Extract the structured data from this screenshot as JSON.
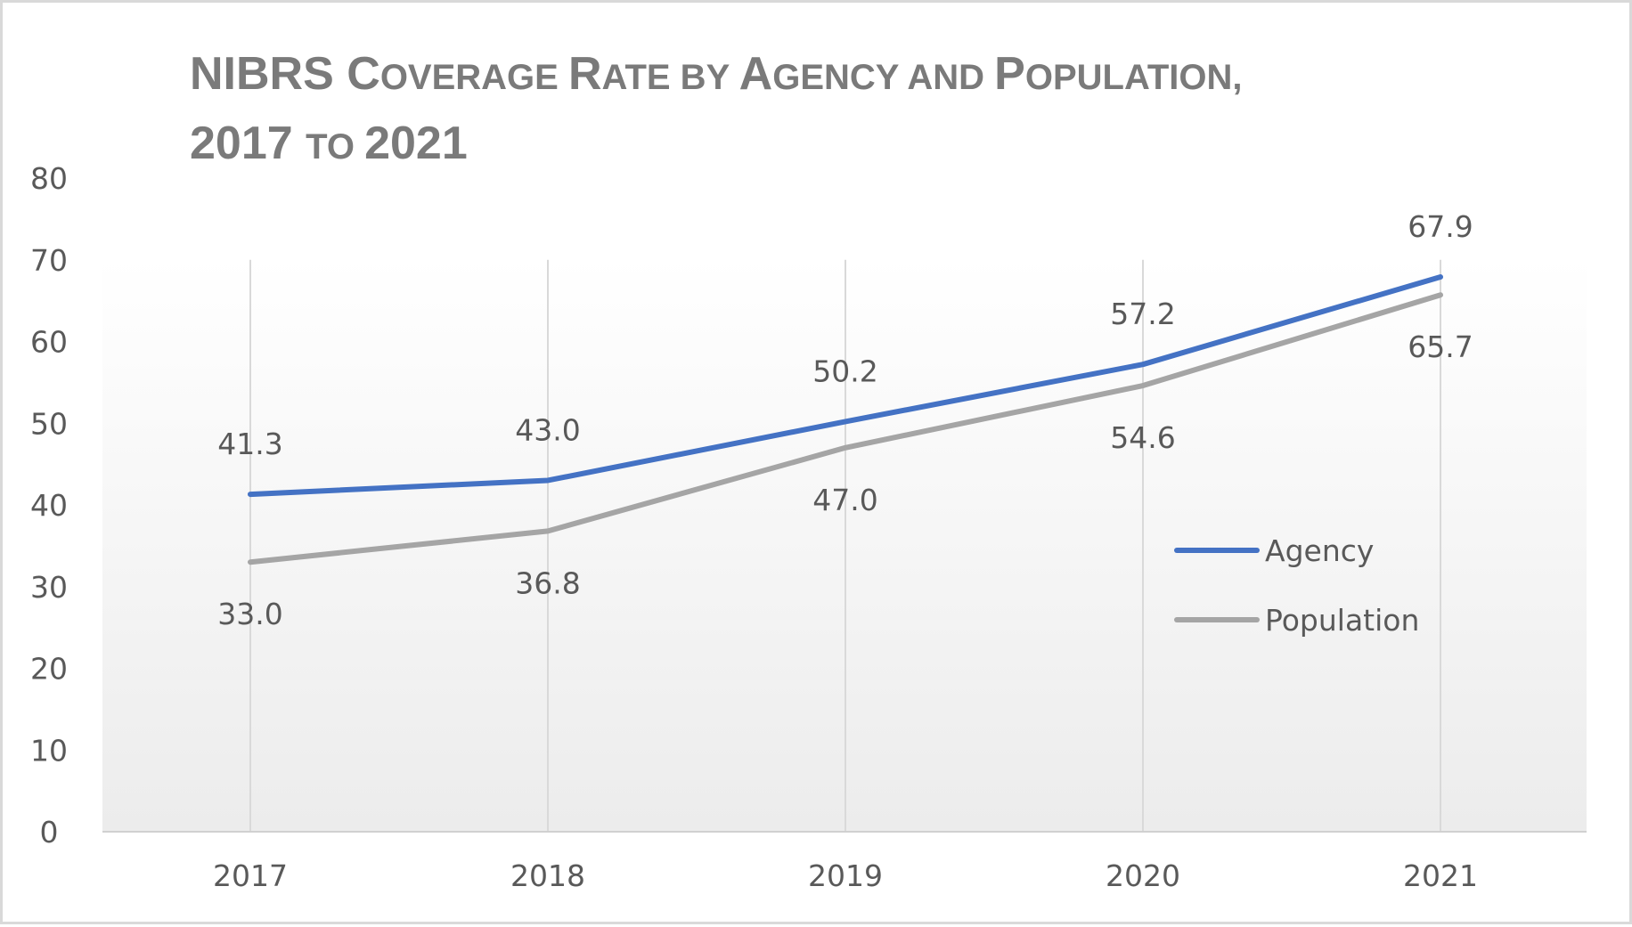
{
  "chart_data": {
    "type": "line",
    "title_lines": [
      [
        {
          "text": "NIBRS ",
          "size": "big"
        },
        {
          "text": "C",
          "size": "big"
        },
        {
          "text": "OVERAGE ",
          "size": "small"
        },
        {
          "text": "R",
          "size": "big"
        },
        {
          "text": "ATE BY ",
          "size": "small"
        },
        {
          "text": "A",
          "size": "big"
        },
        {
          "text": "GENCY AND ",
          "size": "small"
        },
        {
          "text": "P",
          "size": "big"
        },
        {
          "text": "OPULATION,",
          "size": "small"
        }
      ],
      [
        {
          "text": "2017 ",
          "size": "big"
        },
        {
          "text": "TO ",
          "size": "small"
        },
        {
          "text": "2021",
          "size": "big"
        }
      ]
    ],
    "categories": [
      "2017",
      "2018",
      "2019",
      "2020",
      "2021"
    ],
    "series": [
      {
        "name": "Agency",
        "color": "#4472c4",
        "values": [
          41.3,
          43.0,
          50.2,
          57.2,
          67.9
        ],
        "labels": [
          "41.3",
          "43.0",
          "50.2",
          "57.2",
          "67.9"
        ],
        "label_position": "above"
      },
      {
        "name": "Population",
        "color": "#a5a5a5",
        "values": [
          33.0,
          36.8,
          47.0,
          54.6,
          65.7
        ],
        "labels": [
          "33.0",
          "36.8",
          "47.0",
          "54.6",
          "65.7"
        ],
        "label_position": "below"
      }
    ],
    "y_ticks": [
      0,
      10,
      20,
      30,
      40,
      50,
      60,
      70,
      80
    ],
    "ylim": [
      0,
      80
    ],
    "xlabel": "",
    "ylabel": "",
    "legend_position": "right"
  }
}
